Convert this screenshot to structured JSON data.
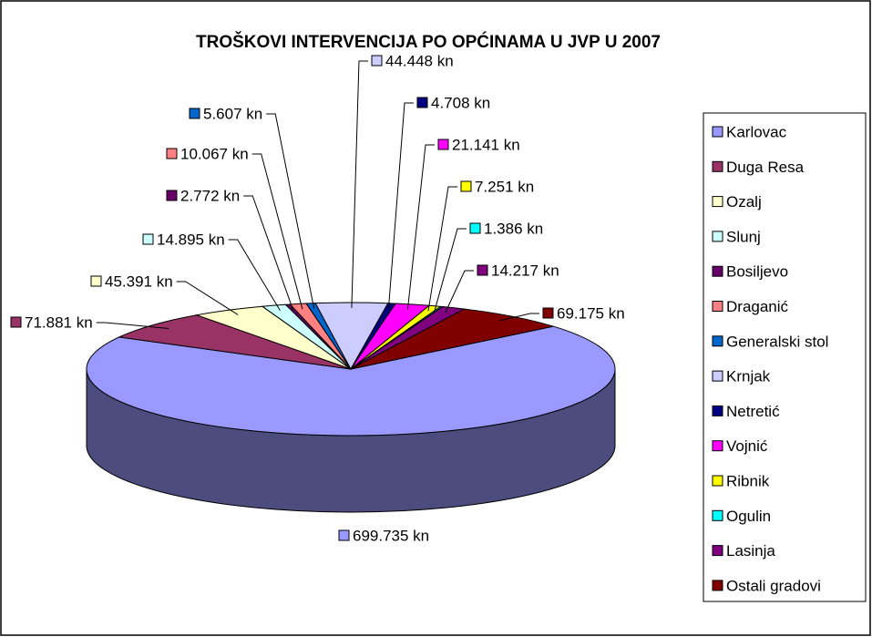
{
  "chart_data": {
    "type": "pie3d",
    "title": "TROŠKOVI INTERVENCIJA PO OPĆINAMA U JVP U 2007",
    "categories": [
      "Karlovac",
      "Duga Resa",
      "Ozalj",
      "Slunj",
      "Bosiljevo",
      "Draganić",
      "Generalski stol",
      "Krnjak",
      "Netretić",
      "Vojnić",
      "Ribnik",
      "Ogulin",
      "Lasinja",
      "Ostali gradovi"
    ],
    "values": [
      699735,
      71881,
      45391,
      14895,
      2772,
      10067,
      5607,
      44448,
      4708,
      21141,
      7251,
      1386,
      14217,
      69175
    ],
    "value_labels": [
      "699.735 kn",
      "71.881 kn",
      "45.391 kn",
      "14.895 kn",
      "2.772 kn",
      "10.067 kn",
      "5.607 kn",
      "44.448 kn",
      "4.708 kn",
      "21.141 kn",
      "7.251 kn",
      "1.386 kn",
      "14.217 kn",
      "69.175 kn"
    ],
    "colors": [
      "#9999ff",
      "#993366",
      "#ffffcc",
      "#ccffff",
      "#660066",
      "#ff8080",
      "#0066cc",
      "#ccccff",
      "#000080",
      "#ff00ff",
      "#ffff00",
      "#00ffff",
      "#800080",
      "#800000"
    ],
    "legend": "right"
  }
}
